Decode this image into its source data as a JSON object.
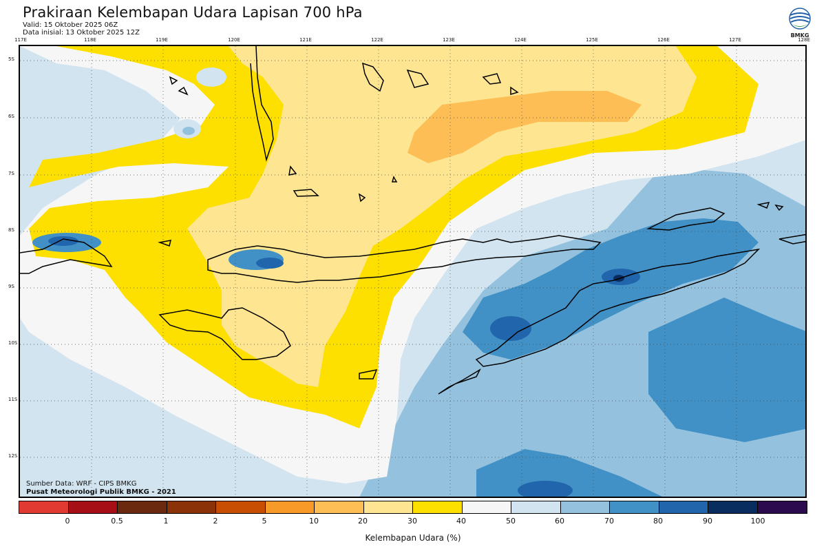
{
  "header": {
    "title": "Prakiraan Kelembapan Udara Lapisan 700 hPa",
    "valid": "Valid: 15 Oktober 2025 06Z",
    "initial": "Data inisial: 13 Oktober 2025 12Z"
  },
  "logo": {
    "text": "BMKG"
  },
  "axes": {
    "lon_labels": [
      "117E",
      "118E",
      "119E",
      "120E",
      "121E",
      "122E",
      "123E",
      "124E",
      "125E",
      "126E",
      "127E",
      "128E"
    ],
    "lat_labels": [
      "5S",
      "6S",
      "7S",
      "8S",
      "9S",
      "10S",
      "11S",
      "12S"
    ]
  },
  "footer": {
    "source": "Sumber Data: WRF - CIPS BMKG",
    "center": "Pusat Meteorologi Publik BMKG - 2021"
  },
  "colorbar": {
    "colors": [
      "#e03a33",
      "#a50f15",
      "#6b2a10",
      "#8c3208",
      "#c84e04",
      "#f89a28",
      "#fdbf55",
      "#fde591",
      "#fde000",
      "#f6f6f6",
      "#d2e4f0",
      "#94c2de",
      "#4291c6",
      "#2166ac",
      "#0a2d60",
      "#2b0a4e"
    ],
    "ticks": [
      "0",
      "0.5",
      "1",
      "2",
      "5",
      "10",
      "20",
      "30",
      "40",
      "50",
      "60",
      "70",
      "80",
      "90",
      "100"
    ],
    "title": "Kelembapan Udara (%)"
  },
  "legend_classes": {
    "c0": "#f6f6f6",
    "c1": "#fde000",
    "c2": "#fde591",
    "c3": "#fdbf55",
    "c4": "#d2e4f0",
    "c5": "#94c2de",
    "c6": "#4291c6",
    "c7": "#2166ac",
    "c8": "#0a2d60"
  }
}
